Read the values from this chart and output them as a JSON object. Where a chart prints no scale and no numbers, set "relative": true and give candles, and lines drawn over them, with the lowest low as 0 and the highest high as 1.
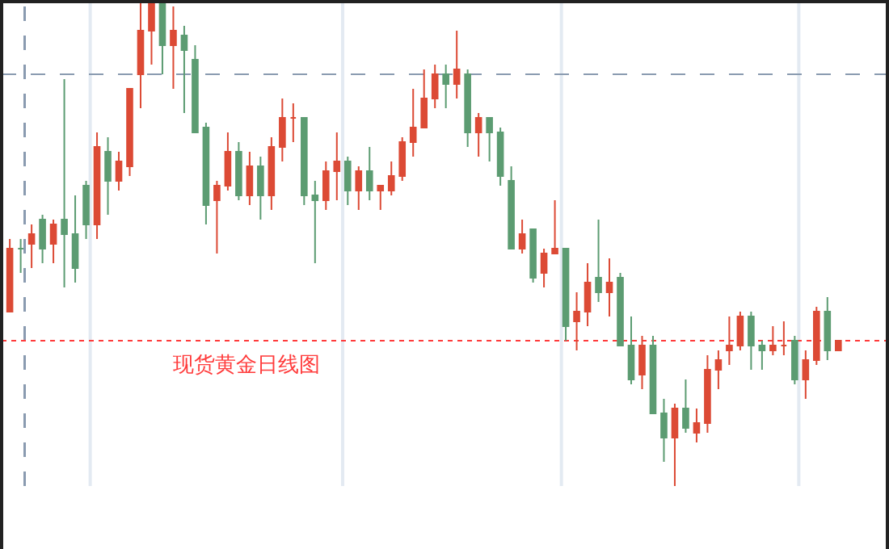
{
  "chart_data": {
    "type": "candlestick",
    "relative": true,
    "categories": [
      null,
      null,
      null,
      null,
      null,
      null,
      null,
      null,
      null,
      null,
      null,
      null,
      null,
      null,
      null,
      null,
      null,
      null,
      null,
      null,
      null,
      null,
      null,
      null,
      null,
      null,
      null,
      null,
      null,
      null,
      null,
      null,
      null,
      null,
      null,
      null,
      null,
      null,
      null,
      null,
      null,
      null,
      null,
      null,
      null,
      null,
      null,
      null,
      null,
      null,
      null,
      null,
      null,
      null,
      null,
      null,
      null,
      null,
      null,
      null,
      null,
      null,
      null,
      null,
      null,
      null,
      null,
      null,
      null,
      null,
      null,
      null,
      null,
      null,
      null,
      null,
      null
    ],
    "colors": [
      "#dc4a35",
      "#5c9c72",
      "#dc4a35",
      "#5c9c72",
      "#dc4a35",
      "#5c9c72",
      "#5c9c72",
      "#5c9c72",
      "#dc4a35",
      "#5c9c72",
      "#dc4a35",
      "#dc4a35",
      "#dc4a35",
      "#dc4a35",
      "#5c9c72",
      "#dc4a35",
      "#5c9c72",
      "#5c9c72",
      "#5c9c72",
      "#dc4a35",
      "#dc4a35",
      "#5c9c72",
      "#dc4a35",
      "#5c9c72",
      "#dc4a35",
      "#dc4a35",
      "#dc4a35",
      "#5c9c72",
      "#5c9c72",
      "#dc4a35",
      "#dc4a35",
      "#5c9c72",
      "#dc4a35",
      "#5c9c72",
      "#dc4a35",
      "#dc4a35",
      "#dc4a35",
      "#dc4a35",
      "#dc4a35",
      "#dc4a35",
      "#5c9c72",
      "#dc4a35",
      "#5c9c72",
      "#dc4a35",
      "#5c9c72",
      "#5c9c72",
      "#5c9c72",
      "#dc4a35",
      "#5c9c72",
      "#dc4a35",
      "#dc4a35",
      "#5c9c72",
      "#dc4a35",
      "#dc4a35",
      "#5c9c72",
      "#dc4a35",
      "#5c9c72",
      "#5c9c72",
      "#dc4a35",
      "#5c9c72",
      "#5c9c72",
      "#dc4a35",
      "#5c9c72",
      "#dc4a35",
      "#dc4a35",
      "#dc4a35",
      "#dc4a35",
      "#dc4a35",
      "#5c9c72",
      "#5c9c72",
      "#dc4a35",
      "#dc4a35",
      "#5c9c72",
      "#dc4a35",
      "#dc4a35",
      "#5c9c72",
      "#dc4a35"
    ],
    "ohlc": [
      [
        0.36,
        0.51,
        0.36,
        0.49
      ],
      [
        0.49,
        0.51,
        0.44,
        0.49
      ],
      [
        0.5,
        0.54,
        0.45,
        0.52
      ],
      [
        0.55,
        0.56,
        0.46,
        0.49
      ],
      [
        0.5,
        0.55,
        0.46,
        0.54
      ],
      [
        0.55,
        0.84,
        0.41,
        0.52
      ],
      [
        0.52,
        0.6,
        0.42,
        0.45
      ],
      [
        0.62,
        0.63,
        0.51,
        0.54
      ],
      [
        0.54,
        0.73,
        0.51,
        0.7
      ],
      [
        0.69,
        0.72,
        0.56,
        0.63
      ],
      [
        0.63,
        0.69,
        0.61,
        0.67
      ],
      [
        0.66,
        0.82,
        0.64,
        0.82
      ],
      [
        0.85,
        1.0,
        0.78,
        0.94
      ],
      [
        0.94,
        1.0,
        0.87,
        1.0
      ],
      [
        1.0,
        1.0,
        0.85,
        0.91
      ],
      [
        0.91,
        0.99,
        0.82,
        0.94
      ],
      [
        0.93,
        0.95,
        0.77,
        0.9
      ],
      [
        0.88,
        0.91,
        0.73,
        0.73
      ],
      [
        0.74,
        0.75,
        0.54,
        0.58
      ],
      [
        0.59,
        0.63,
        0.48,
        0.62
      ],
      [
        0.62,
        0.73,
        0.61,
        0.69
      ],
      [
        0.69,
        0.71,
        0.59,
        0.6
      ],
      [
        0.6,
        0.69,
        0.58,
        0.66
      ],
      [
        0.66,
        0.68,
        0.55,
        0.6
      ],
      [
        0.6,
        0.72,
        0.57,
        0.7
      ],
      [
        0.7,
        0.8,
        0.67,
        0.76
      ],
      [
        0.76,
        0.79,
        0.71,
        0.76
      ],
      [
        0.76,
        0.76,
        0.58,
        0.6
      ],
      [
        0.6,
        0.63,
        0.46,
        0.59
      ],
      [
        0.59,
        0.67,
        0.57,
        0.65
      ],
      [
        0.65,
        0.73,
        0.59,
        0.67
      ],
      [
        0.67,
        0.68,
        0.58,
        0.61
      ],
      [
        0.61,
        0.66,
        0.57,
        0.65
      ],
      [
        0.65,
        0.7,
        0.59,
        0.61
      ],
      [
        0.61,
        0.62,
        0.57,
        0.62
      ],
      [
        0.61,
        0.67,
        0.6,
        0.64
      ],
      [
        0.64,
        0.72,
        0.63,
        0.71
      ],
      [
        0.71,
        0.82,
        0.68,
        0.74
      ],
      [
        0.74,
        0.86,
        0.74,
        0.8
      ],
      [
        0.8,
        0.87,
        0.78,
        0.85
      ],
      [
        0.85,
        0.87,
        0.78,
        0.83
      ],
      [
        0.83,
        0.94,
        0.8,
        0.86
      ],
      [
        0.85,
        0.86,
        0.7,
        0.73
      ],
      [
        0.73,
        0.77,
        0.68,
        0.76
      ],
      [
        0.76,
        0.76,
        0.67,
        0.73
      ],
      [
        0.73,
        0.74,
        0.62,
        0.64
      ],
      [
        0.63,
        0.66,
        0.49,
        0.49
      ],
      [
        0.49,
        0.55,
        0.48,
        0.52
      ],
      [
        0.53,
        0.53,
        0.42,
        0.43
      ],
      [
        0.44,
        0.49,
        0.41,
        0.48
      ],
      [
        0.48,
        0.59,
        0.48,
        0.49
      ],
      [
        0.49,
        0.49,
        0.3,
        0.33
      ],
      [
        0.34,
        0.4,
        0.28,
        0.36
      ],
      [
        0.36,
        0.46,
        0.33,
        0.42
      ],
      [
        0.43,
        0.55,
        0.38,
        0.4
      ],
      [
        0.4,
        0.47,
        0.35,
        0.42
      ],
      [
        0.43,
        0.44,
        0.29,
        0.29
      ],
      [
        0.29,
        0.35,
        0.21,
        0.22
      ],
      [
        0.23,
        0.31,
        0.2,
        0.29
      ],
      [
        0.29,
        0.31,
        0.15,
        0.15
      ],
      [
        0.15,
        0.18,
        0.05,
        0.1
      ],
      [
        0.1,
        0.17,
        0.0,
        0.16
      ],
      [
        0.16,
        0.22,
        0.11,
        0.12
      ],
      [
        0.11,
        0.16,
        0.09,
        0.13
      ],
      [
        0.13,
        0.27,
        0.11,
        0.24
      ],
      [
        0.24,
        0.28,
        0.2,
        0.26
      ],
      [
        0.28,
        0.35,
        0.25,
        0.29
      ],
      [
        0.29,
        0.36,
        0.28,
        0.35
      ],
      [
        0.35,
        0.36,
        0.24,
        0.29
      ],
      [
        0.29,
        0.3,
        0.24,
        0.28
      ],
      [
        0.28,
        0.33,
        0.27,
        0.29
      ],
      [
        0.29,
        0.34,
        0.27,
        0.29
      ],
      [
        0.3,
        0.31,
        0.21,
        0.22
      ],
      [
        0.22,
        0.28,
        0.18,
        0.26
      ],
      [
        0.26,
        0.37,
        0.25,
        0.36
      ],
      [
        0.36,
        0.39,
        0.26,
        0.28
      ],
      [
        0.28,
        0.3,
        0.28,
        0.3
      ]
    ],
    "ref_lines": [
      {
        "axis": "y",
        "value": 0.85,
        "color": "#8a9bb0",
        "line_style": "dashed"
      },
      {
        "axis": "y",
        "value": 0.3,
        "color": "#ff3b3b",
        "line_style": "dotted"
      }
    ],
    "annotations": [
      "现货黄金日线图"
    ]
  }
}
